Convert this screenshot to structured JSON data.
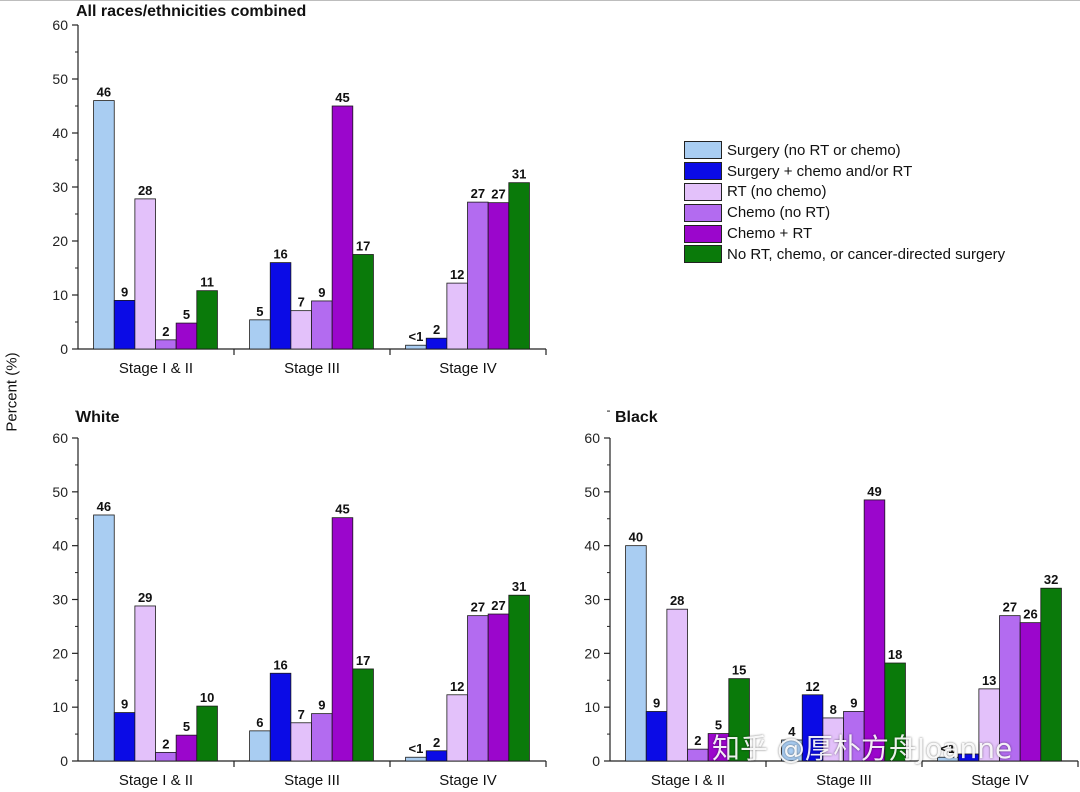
{
  "ylabel": "Percent (%)",
  "legend": [
    {
      "label": "Surgery (no RT or chemo)",
      "color": "#a9cdf2"
    },
    {
      "label": "Surgery + chemo and/or RT",
      "color": "#0b0be6"
    },
    {
      "label": "RT (no chemo)",
      "color": "#e3c1fa"
    },
    {
      "label": "Chemo (no RT)",
      "color": "#b36bf0"
    },
    {
      "label": "Chemo + RT",
      "color": "#9b06cc"
    },
    {
      "label": "No RT, chemo, or cancer-directed surgery",
      "color": "#0a7a0a"
    }
  ],
  "watermark": "知乎 @厚朴方舟Joanne",
  "chart_data": [
    {
      "type": "bar",
      "title": "All races/ethnicities combined",
      "categories": [
        "Stage I & II",
        "Stage III",
        "Stage IV"
      ],
      "ylim": [
        0,
        60
      ],
      "yticks": [
        0,
        10,
        20,
        30,
        40,
        50,
        60
      ],
      "series": [
        {
          "name": "Surgery (no RT or chemo)",
          "values": [
            46,
            5.4,
            0.7
          ],
          "labels": [
            "46",
            "5",
            "<1"
          ]
        },
        {
          "name": "Surgery + chemo and/or RT",
          "values": [
            9,
            16,
            2
          ],
          "labels": [
            "9",
            "16",
            "2"
          ]
        },
        {
          "name": "RT (no chemo)",
          "values": [
            27.8,
            7.1,
            12.2
          ],
          "labels": [
            "28",
            "7",
            "12"
          ]
        },
        {
          "name": "Chemo (no RT)",
          "values": [
            1.7,
            8.9,
            27.2
          ],
          "labels": [
            "2",
            "9",
            "27"
          ]
        },
        {
          "name": "Chemo + RT",
          "values": [
            4.8,
            45,
            27.1
          ],
          "labels": [
            "5",
            "45",
            "27"
          ]
        },
        {
          "name": "No RT, chemo, or cancer-directed surgery",
          "values": [
            10.8,
            17.5,
            30.8
          ],
          "labels": [
            "11",
            "17",
            "31"
          ]
        }
      ]
    },
    {
      "type": "bar",
      "title": "White",
      "categories": [
        "Stage I & II",
        "Stage III",
        "Stage IV"
      ],
      "ylim": [
        0,
        60
      ],
      "yticks": [
        0,
        10,
        20,
        30,
        40,
        50,
        60
      ],
      "series": [
        {
          "name": "Surgery (no RT or chemo)",
          "values": [
            45.7,
            5.6,
            0.7
          ],
          "labels": [
            "46",
            "6",
            "<1"
          ]
        },
        {
          "name": "Surgery + chemo and/or RT",
          "values": [
            9,
            16.3,
            1.9
          ],
          "labels": [
            "9",
            "16",
            "2"
          ]
        },
        {
          "name": "RT (no chemo)",
          "values": [
            28.8,
            7.1,
            12.3
          ],
          "labels": [
            "29",
            "7",
            "12"
          ]
        },
        {
          "name": "Chemo (no RT)",
          "values": [
            1.6,
            8.8,
            27
          ],
          "labels": [
            "2",
            "9",
            "27"
          ]
        },
        {
          "name": "Chemo + RT",
          "values": [
            4.8,
            45.2,
            27.3
          ],
          "labels": [
            "5",
            "45",
            "27"
          ]
        },
        {
          "name": "No RT, chemo, or cancer-directed surgery",
          "values": [
            10.2,
            17.1,
            30.8
          ],
          "labels": [
            "10",
            "17",
            "31"
          ]
        }
      ]
    },
    {
      "type": "bar",
      "title": "Black",
      "categories": [
        "Stage I & II",
        "Stage III",
        "Stage IV"
      ],
      "ylim": [
        0,
        60
      ],
      "yticks": [
        0,
        10,
        20,
        30,
        40,
        50,
        60
      ],
      "series": [
        {
          "name": "Surgery (no RT or chemo)",
          "values": [
            40,
            3.9,
            0.7
          ],
          "labels": [
            "40",
            "4",
            "<1"
          ]
        },
        {
          "name": "Surgery + chemo and/or RT",
          "values": [
            9.2,
            12.3,
            1.3
          ],
          "labels": [
            "9",
            "12",
            ""
          ]
        },
        {
          "name": "RT (no chemo)",
          "values": [
            28.2,
            8,
            13.4
          ],
          "labels": [
            "28",
            "8",
            "13"
          ]
        },
        {
          "name": "Chemo (no RT)",
          "values": [
            2.2,
            9.2,
            27
          ],
          "labels": [
            "2",
            "9",
            "27"
          ]
        },
        {
          "name": "Chemo + RT",
          "values": [
            5.1,
            48.5,
            25.7
          ],
          "labels": [
            "5",
            "49",
            "26"
          ]
        },
        {
          "name": "No RT, chemo, or cancer-directed surgery",
          "values": [
            15.3,
            18.2,
            32.1
          ],
          "labels": [
            "15",
            "18",
            "32"
          ]
        }
      ]
    }
  ]
}
